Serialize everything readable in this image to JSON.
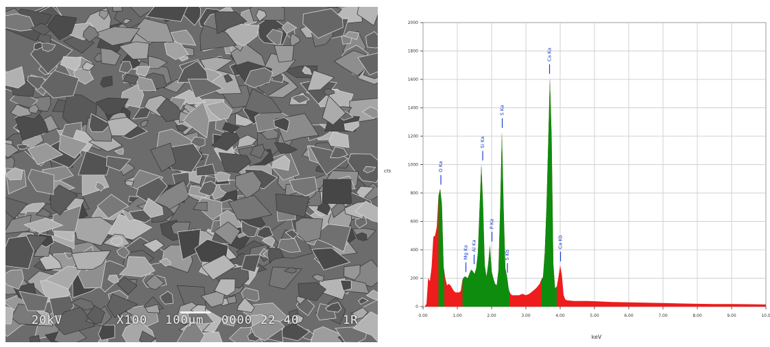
{
  "sem_image": {
    "caption": {
      "voltage": "20kV",
      "magnification": "X100",
      "scale": "100μm",
      "image_number": "0000",
      "label_1": "22 40",
      "label_2": "1R"
    }
  },
  "chart_data": {
    "type": "area",
    "title": "",
    "xlabel": "keV",
    "ylabel": "cts",
    "xlim": [
      0,
      10
    ],
    "ylim": [
      0,
      2000
    ],
    "x_ticks": [
      "0.00",
      "1.00",
      "2.00",
      "3.00",
      "4.00",
      "5.00",
      "6.00",
      "7.00",
      "8.00",
      "9.00",
      "10.0"
    ],
    "y_ticks": [
      "0",
      "200",
      "400",
      "600",
      "800",
      "1000",
      "1200",
      "1400",
      "1600",
      "1800",
      "2000"
    ],
    "grid": true,
    "colors": {
      "background_counts": "#ee1c1c",
      "peak_regions": "#0e8c0e",
      "peak_labels": "#1a3ccf",
      "grid": "#d0d0d0"
    },
    "peaks": [
      {
        "label": "O Ka",
        "x": 0.52,
        "y": 830
      },
      {
        "label": "Mg Ka",
        "x": 1.25,
        "y": 215
      },
      {
        "label": "Al Ka",
        "x": 1.49,
        "y": 270
      },
      {
        "label": "Si Ka",
        "x": 1.74,
        "y": 1000
      },
      {
        "label": "P Ka",
        "x": 2.01,
        "y": 430
      },
      {
        "label": "S Ka",
        "x": 2.31,
        "y": 1230
      },
      {
        "label": "S Kb",
        "x": 2.46,
        "y": 210
      },
      {
        "label": "Ca Ka",
        "x": 3.69,
        "y": 1610
      },
      {
        "label": "Ca Kb",
        "x": 4.01,
        "y": 290
      }
    ],
    "green_regions": [
      [
        0.45,
        0.62
      ],
      [
        1.15,
        2.52
      ],
      [
        3.45,
        3.9
      ]
    ],
    "spectrum": {
      "x": [
        0.0,
        0.05,
        0.1,
        0.15,
        0.2,
        0.25,
        0.3,
        0.35,
        0.4,
        0.45,
        0.5,
        0.55,
        0.6,
        0.65,
        0.7,
        0.75,
        0.8,
        0.85,
        0.9,
        0.95,
        1.0,
        1.05,
        1.1,
        1.15,
        1.2,
        1.25,
        1.3,
        1.35,
        1.4,
        1.45,
        1.5,
        1.55,
        1.6,
        1.65,
        1.7,
        1.75,
        1.8,
        1.85,
        1.9,
        1.95,
        2.0,
        2.05,
        2.1,
        2.15,
        2.2,
        2.25,
        2.3,
        2.35,
        2.4,
        2.45,
        2.5,
        2.55,
        2.6,
        2.7,
        2.8,
        2.9,
        3.0,
        3.1,
        3.2,
        3.3,
        3.4,
        3.45,
        3.5,
        3.55,
        3.6,
        3.65,
        3.7,
        3.75,
        3.8,
        3.85,
        3.9,
        3.95,
        4.0,
        4.05,
        4.1,
        4.15,
        4.2,
        4.4,
        4.6,
        4.8,
        5.0,
        5.5,
        6.0,
        6.5,
        7.0,
        7.5,
        8.0,
        8.5,
        9.0,
        9.5,
        10.0
      ],
      "y": [
        0,
        0,
        20,
        200,
        180,
        280,
        490,
        500,
        560,
        780,
        830,
        720,
        280,
        200,
        150,
        160,
        150,
        130,
        110,
        100,
        100,
        100,
        110,
        190,
        210,
        210,
        200,
        230,
        260,
        250,
        230,
        270,
        380,
        700,
        1000,
        720,
        290,
        210,
        300,
        430,
        250,
        200,
        160,
        150,
        260,
        700,
        1230,
        700,
        270,
        210,
        120,
        90,
        80,
        80,
        80,
        90,
        80,
        90,
        110,
        130,
        160,
        190,
        210,
        380,
        700,
        1150,
        1610,
        1200,
        300,
        130,
        140,
        210,
        290,
        220,
        80,
        50,
        45,
        40,
        40,
        40,
        38,
        33,
        30,
        28,
        25,
        22,
        20,
        18,
        18,
        17,
        15
      ]
    }
  }
}
